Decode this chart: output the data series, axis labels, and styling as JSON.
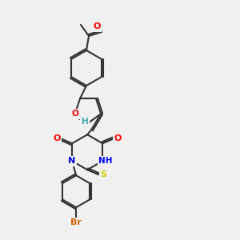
{
  "bg_color": "#f0f0f0",
  "bond_color": "#333333",
  "atom_colors": {
    "O": "#ff0000",
    "N": "#0000ff",
    "S": "#cccc00",
    "Br": "#cc6600",
    "H": "#44aaaa",
    "C": "#333333"
  },
  "font_size": 7.5,
  "line_width": 1.5
}
